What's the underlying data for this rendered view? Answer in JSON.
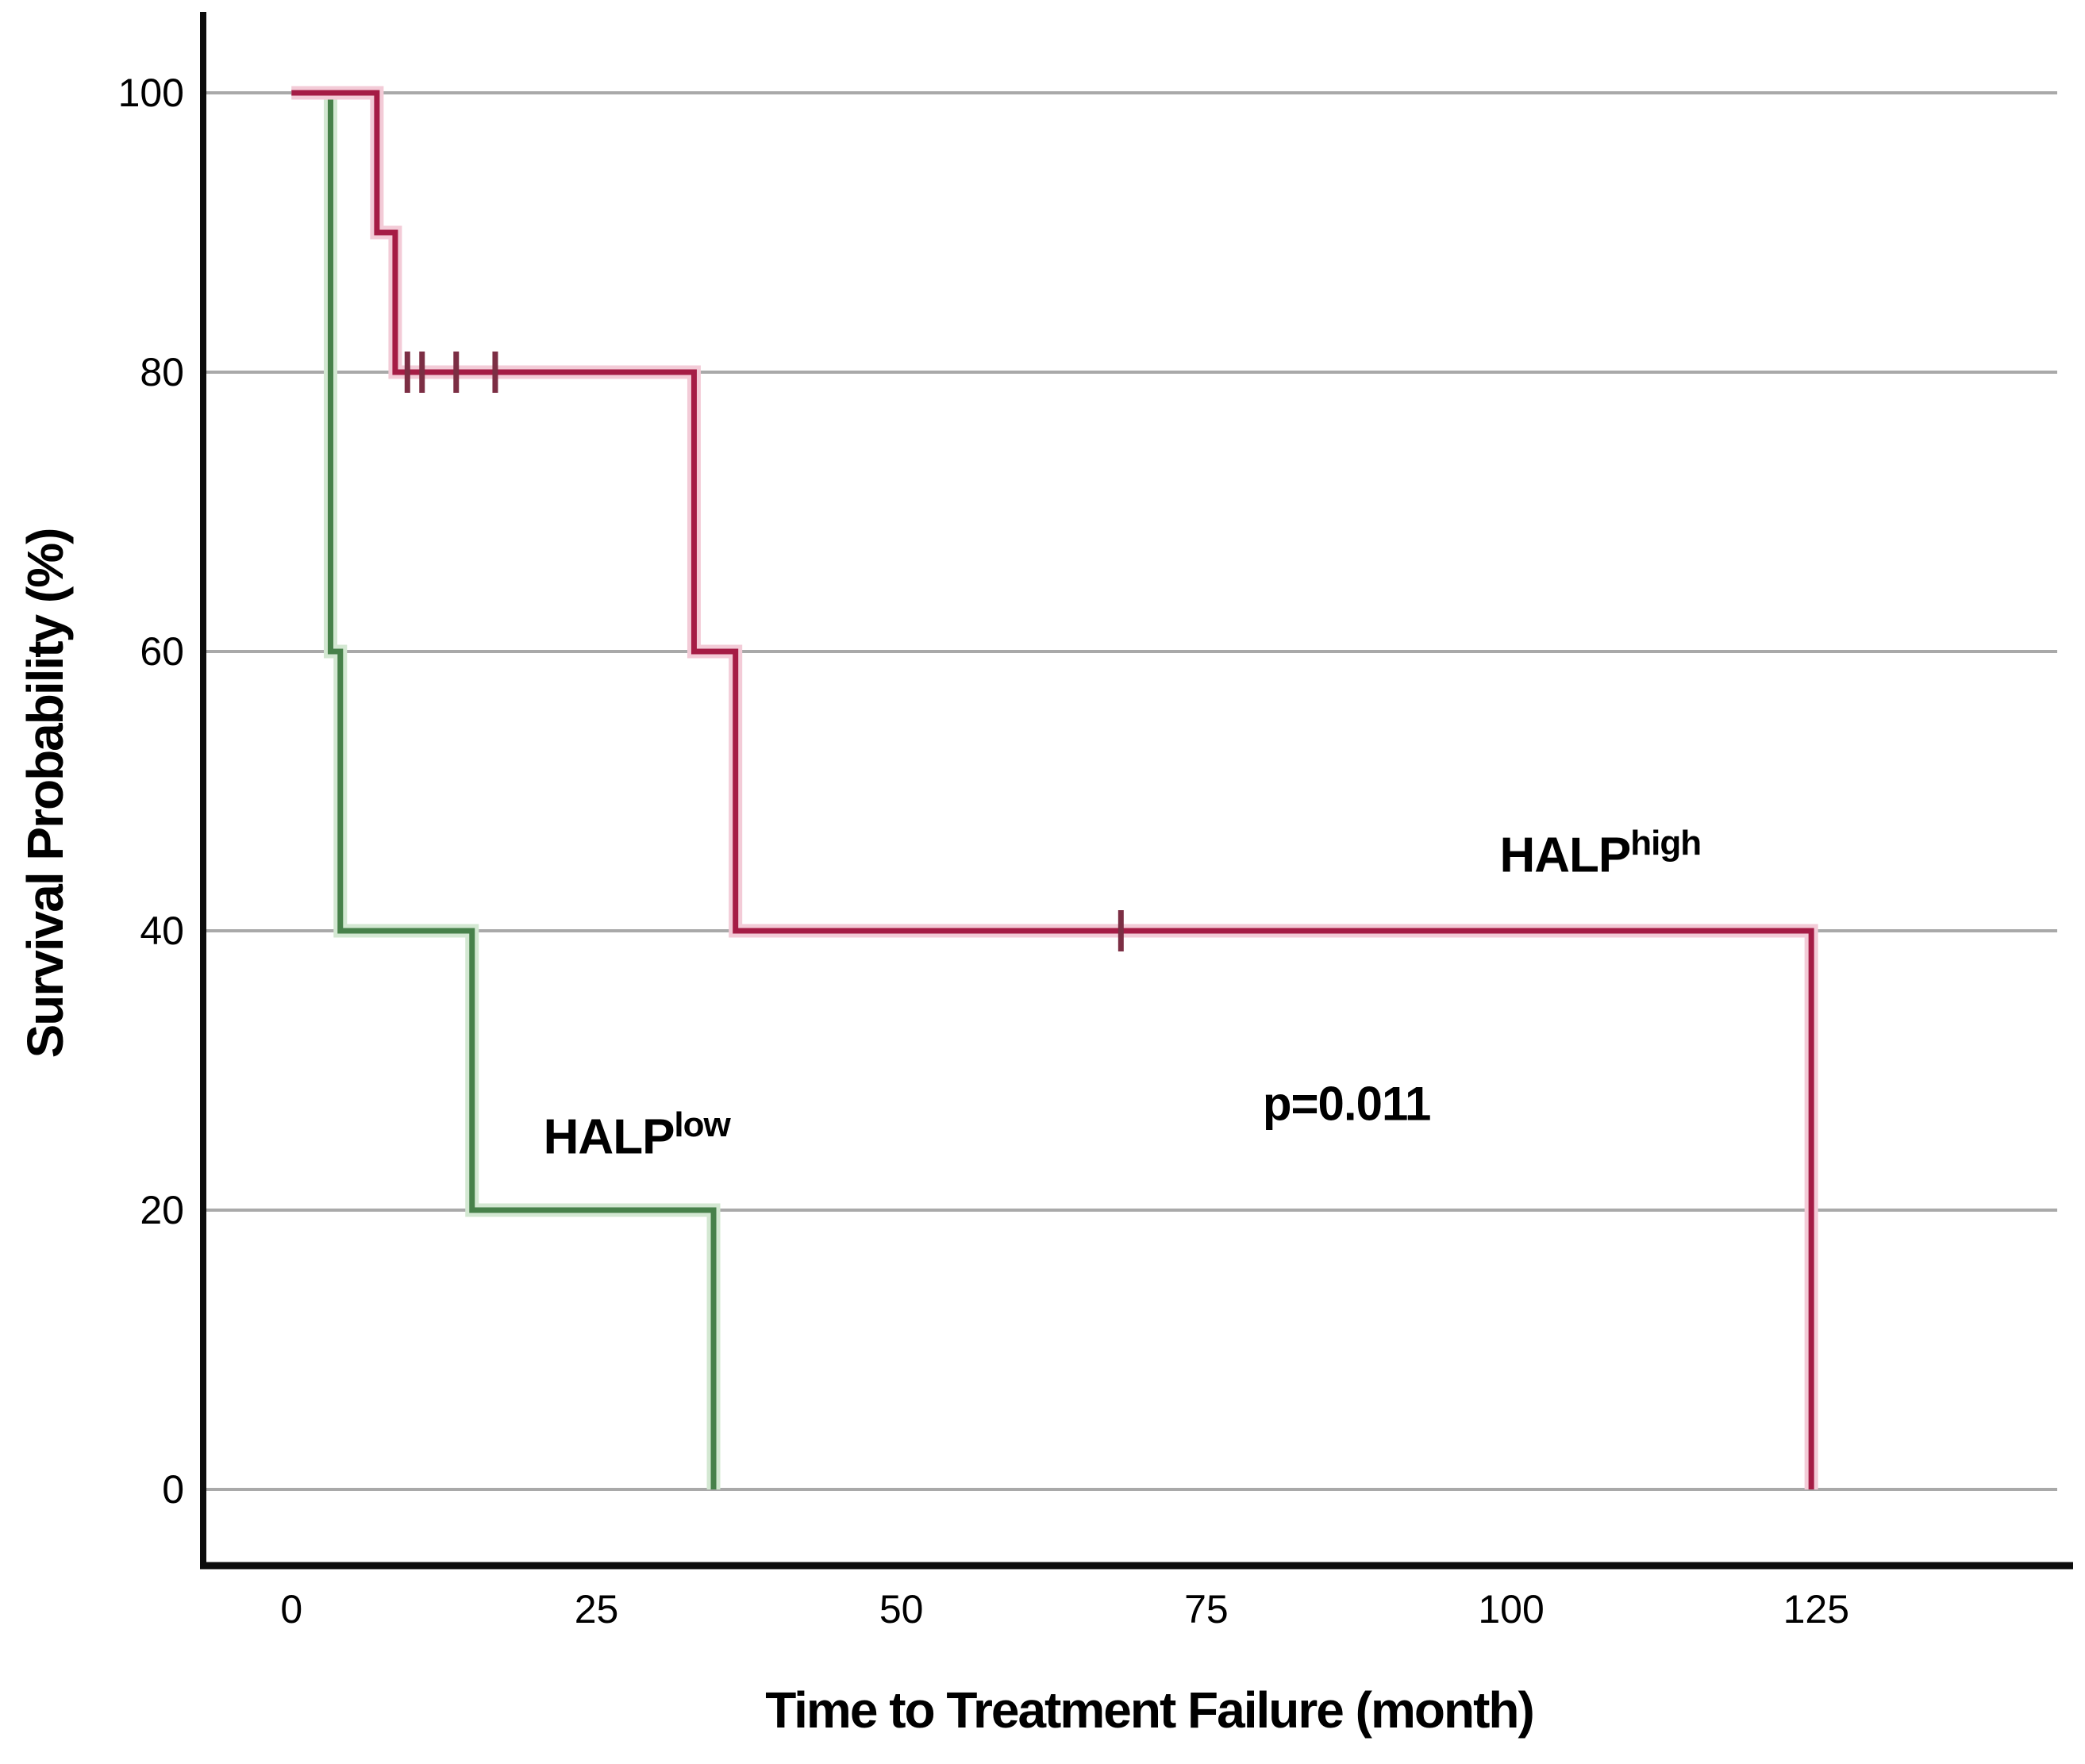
{
  "chart_data": {
    "type": "line",
    "subtype": "kaplan_meier_survival_step",
    "title": "",
    "xlabel": "Time to Treatment Failure (month)",
    "ylabel": "Survival Probability (%)",
    "x_ticks": [
      0,
      25,
      50,
      75,
      100,
      125
    ],
    "y_ticks": [
      100,
      80,
      60,
      40,
      20,
      0
    ],
    "xlim": [
      -7.3,
      146
    ],
    "ylim": [
      -5.5,
      105.8
    ],
    "grid": "horizontal",
    "legend_position": "inline-annotations",
    "p_value": {
      "label": "p=0.011",
      "anchor_x": 86.5,
      "anchor_y": 27.6
    },
    "series": [
      {
        "name": "HALP-high",
        "label_main": "HALP",
        "label_sup": "high",
        "anchor_x": 107.3,
        "anchor_y": 45.4,
        "color": "#a51c45",
        "halo_color": "#f3cbd7",
        "censor_color": "#7c2e44",
        "points": [
          [
            0,
            100
          ],
          [
            7,
            100
          ],
          [
            7,
            90
          ],
          [
            8.5,
            90
          ],
          [
            8.5,
            80
          ],
          [
            33,
            80
          ],
          [
            33,
            60
          ],
          [
            36.4,
            60
          ],
          [
            36.4,
            40
          ],
          [
            124.6,
            40
          ],
          [
            124.6,
            0
          ]
        ],
        "censor_marks": [
          [
            9.5,
            80
          ],
          [
            10.7,
            80
          ],
          [
            13.5,
            80
          ],
          [
            16.7,
            80
          ],
          [
            68,
            40
          ]
        ]
      },
      {
        "name": "HALP-low",
        "label_main": "HALP",
        "label_sup": "low",
        "anchor_x": 28.3,
        "anchor_y": 25.2,
        "color": "#47814a",
        "halo_color": "#d3e8d2",
        "censor_color": "#3a6b3e",
        "points": [
          [
            0,
            100
          ],
          [
            3.2,
            100
          ],
          [
            3.2,
            60
          ],
          [
            4,
            60
          ],
          [
            4,
            40
          ],
          [
            14.8,
            40
          ],
          [
            14.8,
            20
          ],
          [
            34.6,
            20
          ],
          [
            34.6,
            0
          ]
        ],
        "censor_marks": []
      }
    ],
    "colors": {
      "gridline": "#a9a9a9",
      "axis": "#0d0d0d",
      "text": "#000000",
      "background": "#ffffff"
    }
  }
}
